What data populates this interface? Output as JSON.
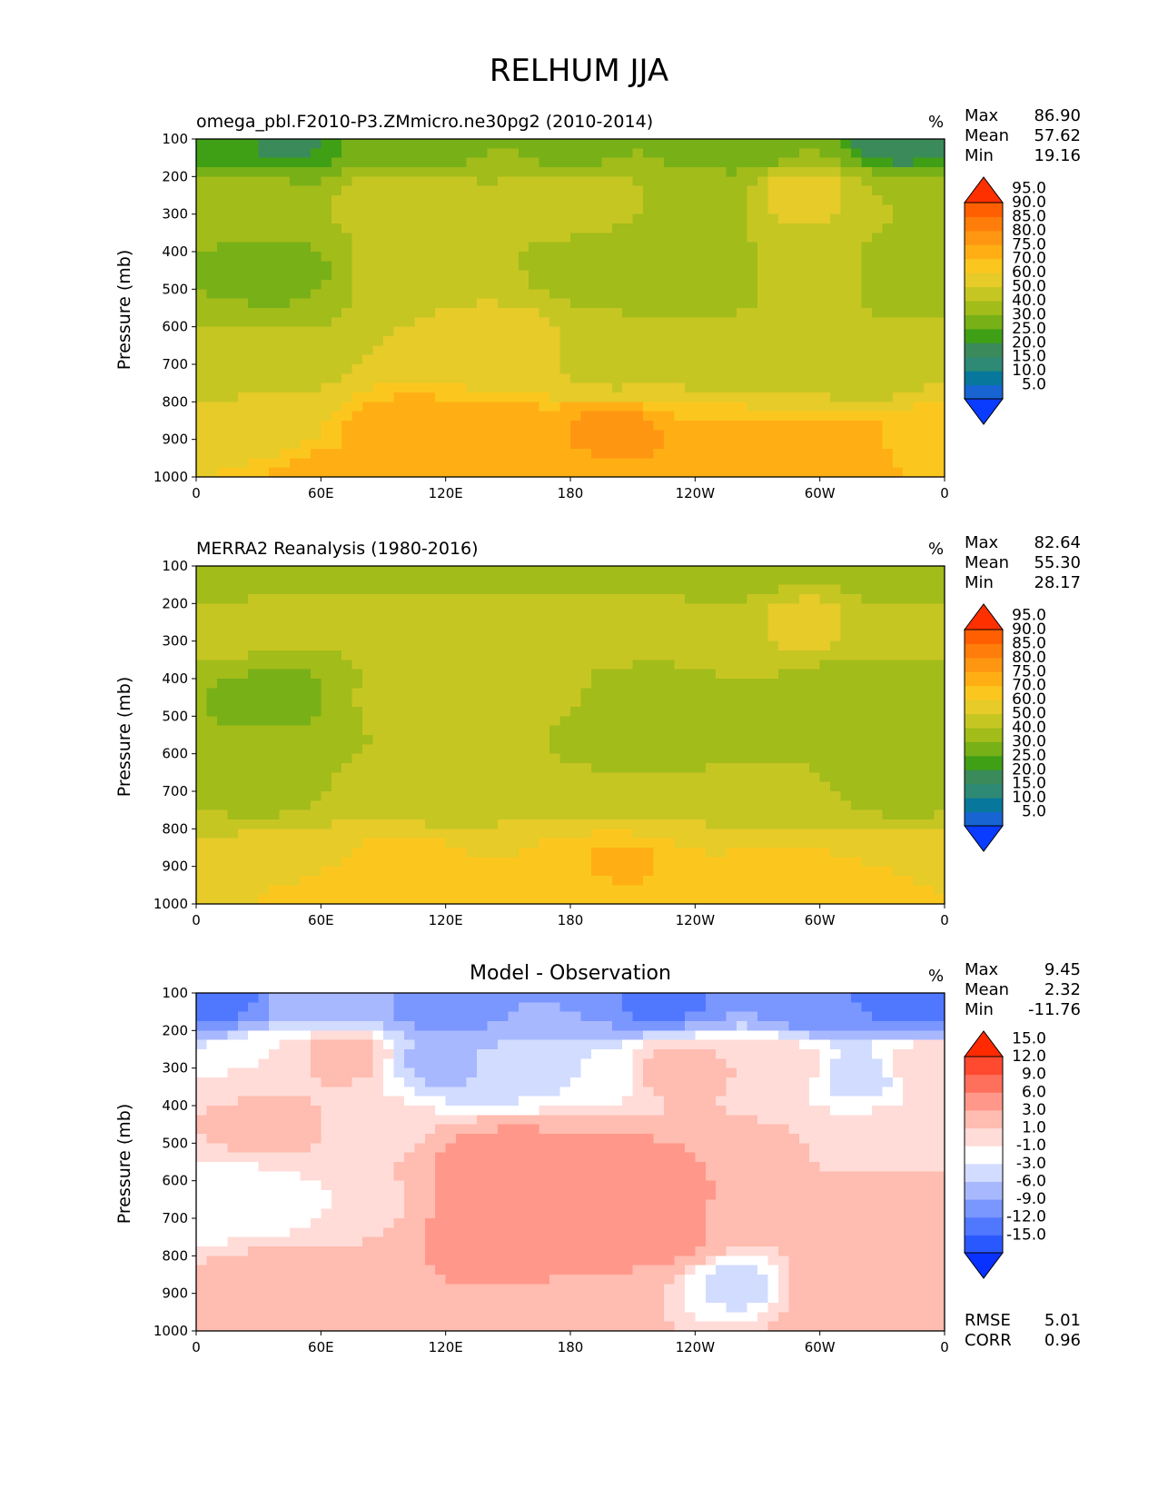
{
  "page_title": "RELHUM JJA",
  "ylabel": "Pressure (mb)",
  "panels": [
    {
      "title": "omega_pbl.F2010-P3.ZMmicro.ne30pg2 (2010-2014)",
      "units": "%",
      "stats": {
        "max_label": "Max",
        "max": "86.90",
        "mean_label": "Mean",
        "mean": "57.62",
        "min_label": "Min",
        "min": "19.16"
      }
    },
    {
      "title": "MERRA2 Reanalysis (1980-2016)",
      "units": "%",
      "stats": {
        "max_label": "Max",
        "max": "82.64",
        "mean_label": "Mean",
        "mean": "55.30",
        "min_label": "Min",
        "min": "28.17"
      }
    },
    {
      "title": "Model - Observation",
      "units": "%",
      "stats": {
        "max_label": "Max",
        "max": "9.45",
        "mean_label": "Mean",
        "mean": "2.32",
        "min_label": "Min",
        "min": "-11.76"
      },
      "rmse_label": "RMSE",
      "rmse": "5.01",
      "corr_label": "CORR",
      "corr": "0.96"
    }
  ],
  "chart_data": [
    {
      "type": "heatmap",
      "title": "omega_pbl.F2010-P3.ZMmicro.ne30pg2 (2010-2014)",
      "xlabel": "",
      "ylabel": "Pressure (mb)",
      "x_ticks": [
        "0",
        "60E",
        "120E",
        "180",
        "120W",
        "60W",
        "0"
      ],
      "y_ticks": [
        "100",
        "200",
        "300",
        "400",
        "500",
        "600",
        "700",
        "800",
        "900",
        "1000"
      ],
      "x_range": [
        0,
        360
      ],
      "y_range": [
        100,
        1000
      ],
      "colorbar": {
        "levels": [
          "5.0",
          "10.0",
          "15.0",
          "20.0",
          "25.0",
          "30.0",
          "40.0",
          "50.0",
          "60.0",
          "70.0",
          "75.0",
          "80.0",
          "85.0",
          "90.0",
          "95.0"
        ],
        "colors": [
          "#0a3cff",
          "#1764d2",
          "#07789b",
          "#2e8a74",
          "#3a8a5a",
          "#3fa016",
          "#78b017",
          "#a2bc1a",
          "#c6c623",
          "#e6cb29",
          "#fbc71e",
          "#ffaf14",
          "#ff9612",
          "#ff7d0a",
          "#ff5f00",
          "#ff3000"
        ]
      }
    },
    {
      "type": "heatmap",
      "title": "MERRA2 Reanalysis (1980-2016)",
      "xlabel": "",
      "ylabel": "Pressure (mb)",
      "x_ticks": [
        "0",
        "60E",
        "120E",
        "180",
        "120W",
        "60W",
        "0"
      ],
      "y_ticks": [
        "100",
        "200",
        "300",
        "400",
        "500",
        "600",
        "700",
        "800",
        "900",
        "1000"
      ],
      "x_range": [
        0,
        360
      ],
      "y_range": [
        100,
        1000
      ],
      "colorbar": {
        "levels": [
          "5.0",
          "10.0",
          "15.0",
          "20.0",
          "25.0",
          "30.0",
          "40.0",
          "50.0",
          "60.0",
          "70.0",
          "75.0",
          "80.0",
          "85.0",
          "90.0",
          "95.0"
        ],
        "colors": [
          "#0a3cff",
          "#1764d2",
          "#07789b",
          "#2e8a74",
          "#3a8a5a",
          "#3fa016",
          "#78b017",
          "#a2bc1a",
          "#c6c623",
          "#e6cb29",
          "#fbc71e",
          "#ffaf14",
          "#ff9612",
          "#ff7d0a",
          "#ff5f00",
          "#ff3000"
        ]
      }
    },
    {
      "type": "heatmap",
      "title": "Model - Observation",
      "xlabel": "",
      "ylabel": "Pressure (mb)",
      "x_ticks": [
        "0",
        "60E",
        "120E",
        "180",
        "120W",
        "60W",
        "0"
      ],
      "y_ticks": [
        "100",
        "200",
        "300",
        "400",
        "500",
        "600",
        "700",
        "800",
        "900",
        "1000"
      ],
      "x_range": [
        0,
        360
      ],
      "y_range": [
        100,
        1000
      ],
      "colorbar": {
        "levels": [
          "-15.0",
          "-12.0",
          "-9.0",
          "-6.0",
          "-3.0",
          "-1.0",
          "1.0",
          "3.0",
          "6.0",
          "9.0",
          "12.0",
          "15.0"
        ],
        "colors": [
          "#0a32ff",
          "#2a58ff",
          "#5078ff",
          "#7a96ff",
          "#a8b8ff",
          "#d2dcff",
          "#ffffff",
          "#ffdcd8",
          "#ffbcb0",
          "#ff988a",
          "#ff705c",
          "#ff4a30",
          "#ff2a00"
        ]
      }
    }
  ]
}
